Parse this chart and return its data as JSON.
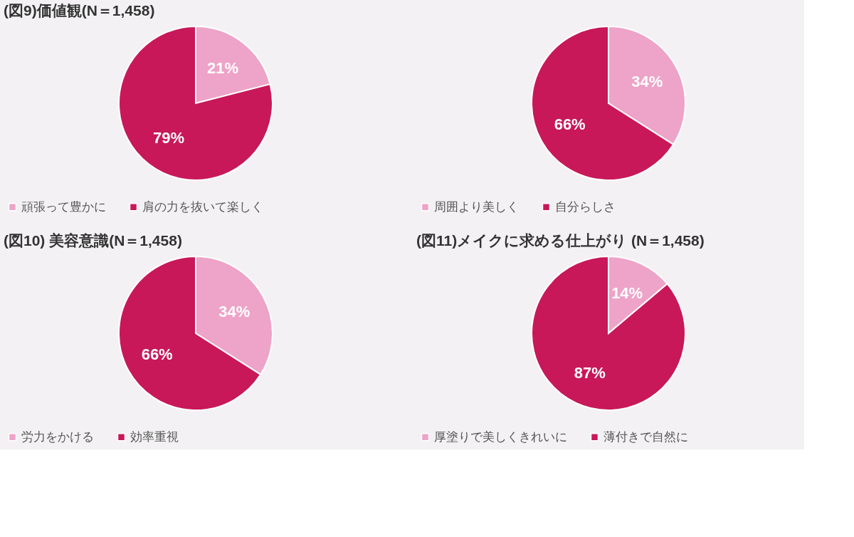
{
  "chart_data": [
    {
      "type": "pie",
      "title": "(図9)価値観(N＝1,458)",
      "categories": [
        "頑張って豊かに",
        "肩の力を抜いて楽しく"
      ],
      "values": [
        21,
        79
      ],
      "colors": [
        "#eea3c8",
        "#c8185a"
      ],
      "value_labels": [
        "21%",
        "79%"
      ],
      "legend": "bottom"
    },
    {
      "type": "pie",
      "categories": [
        "周囲より美しく",
        "自分らしさ"
      ],
      "values": [
        34,
        66
      ],
      "colors": [
        "#eea3c8",
        "#c8185a"
      ],
      "value_labels": [
        "34%",
        "66%"
      ],
      "legend": "bottom"
    },
    {
      "type": "pie",
      "title": "(図10) 美容意識(N＝1,458)",
      "categories": [
        "労力をかける",
        "効率重視"
      ],
      "values": [
        34,
        66
      ],
      "colors": [
        "#eea3c8",
        "#c8185a"
      ],
      "value_labels": [
        "34%",
        "66%"
      ],
      "legend": "bottom"
    },
    {
      "type": "pie",
      "title": "(図11)メイクに求める仕上がり (N＝1,458)",
      "categories": [
        "厚塗りで美しくきれいに",
        "薄付きで自然に"
      ],
      "values": [
        14,
        87
      ],
      "colors": [
        "#eea3c8",
        "#c8185a"
      ],
      "value_labels": [
        "14%",
        "87%"
      ],
      "legend": "bottom"
    }
  ]
}
